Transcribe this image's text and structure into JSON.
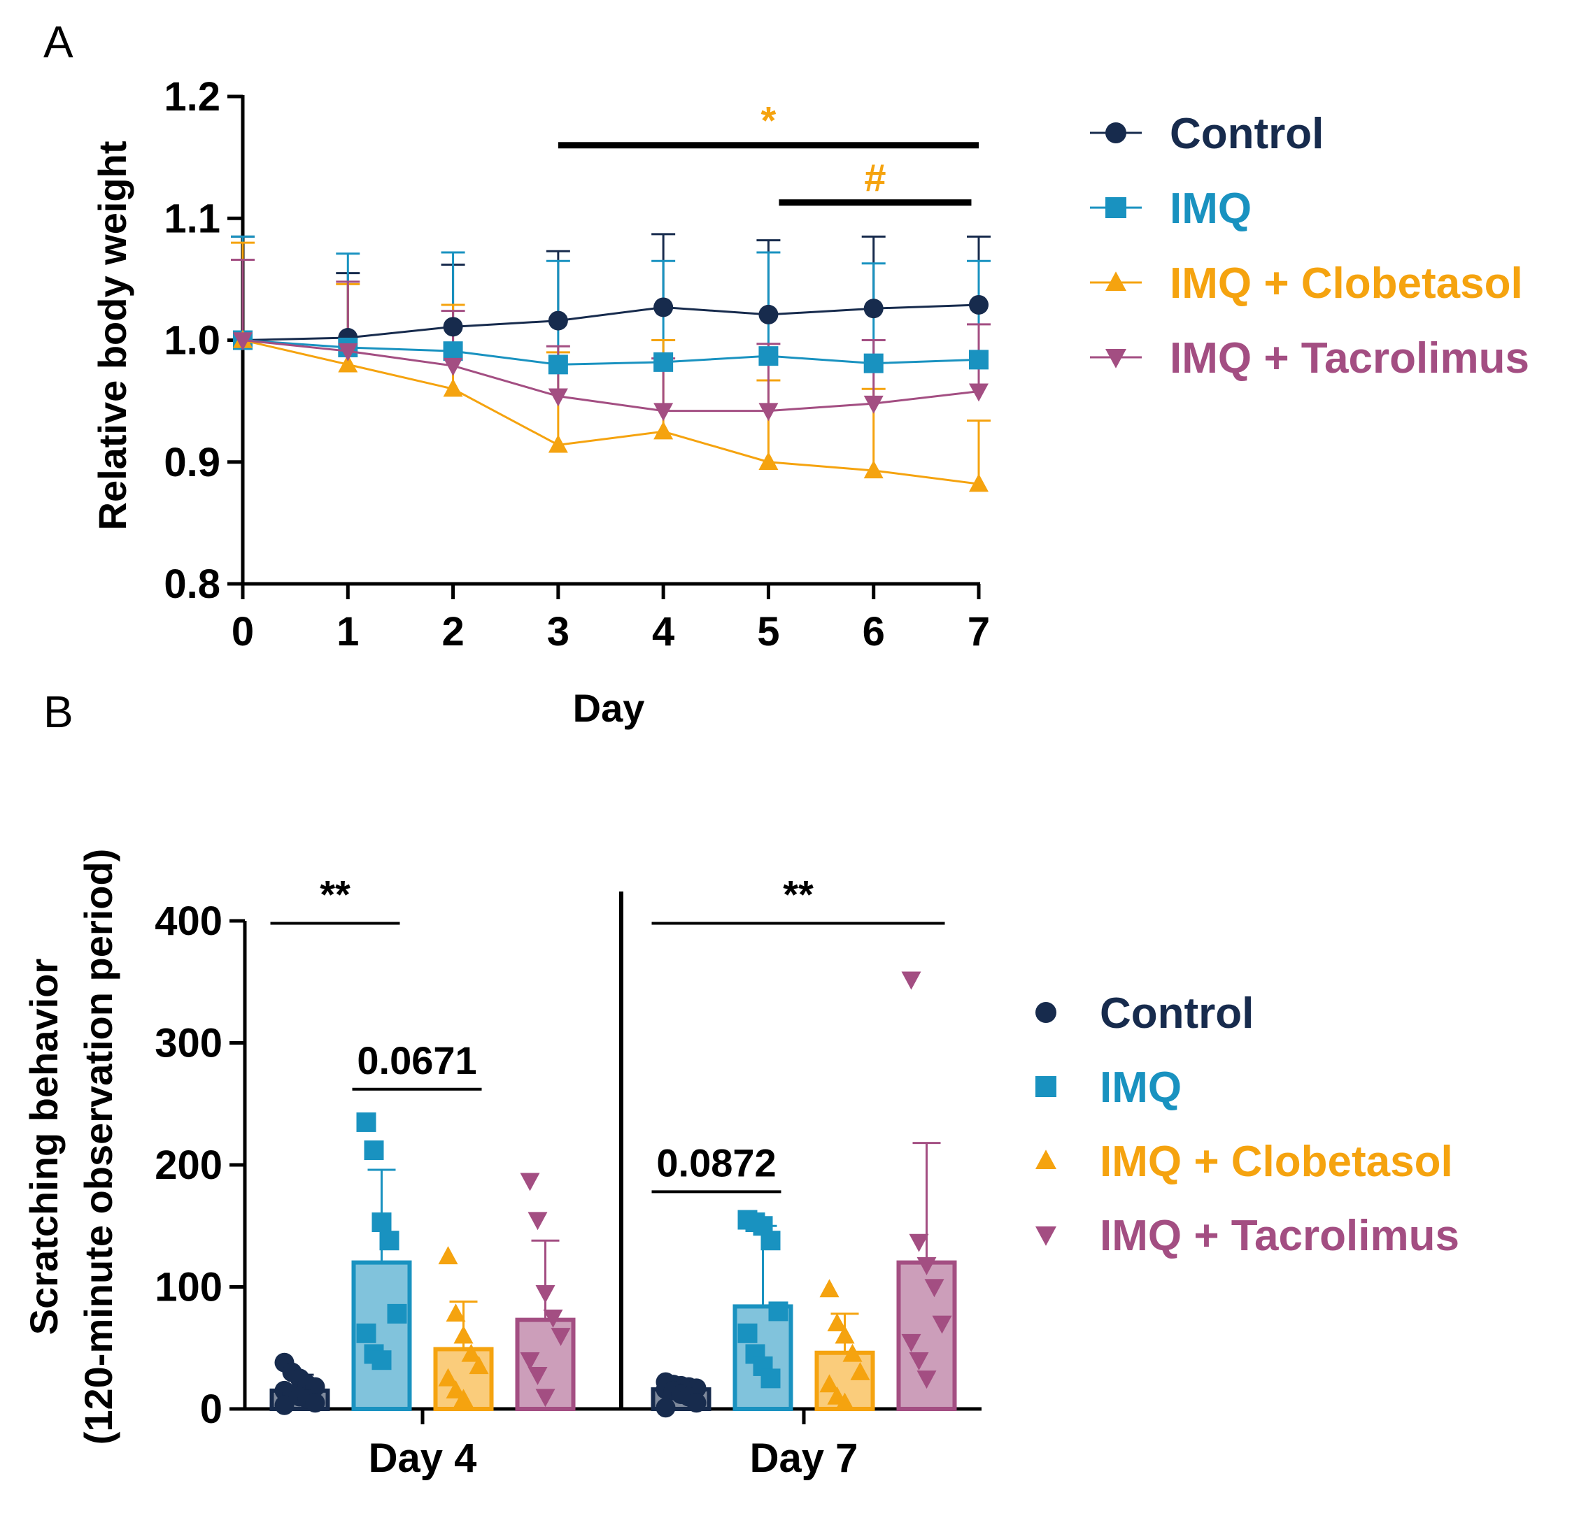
{
  "colors": {
    "Control": "#172b4d",
    "IMQ": "#1992c0",
    "IMQ + Clobetasol": "#f5a30f",
    "IMQ + Tacrolimus": "#a34e82",
    "axis": "#000000"
  },
  "chart_data": [
    {
      "panel": "A",
      "type": "line",
      "title": "",
      "xlabel": "Day",
      "ylabel": "Relative body weight",
      "x": [
        0,
        1,
        2,
        3,
        4,
        5,
        6,
        7
      ],
      "xticks": [
        "0",
        "1",
        "2",
        "3",
        "4",
        "5",
        "6",
        "7"
      ],
      "yticks": [
        "0.8",
        "0.9",
        "1.0",
        "1.1",
        "1.2"
      ],
      "ytick_values": [
        0.8,
        0.9,
        1.0,
        1.1,
        1.2
      ],
      "xlim": [
        0,
        7
      ],
      "ylim": [
        0.8,
        1.2
      ],
      "legend_position": "right",
      "series": [
        {
          "name": "Control",
          "marker": "circle",
          "values": [
            1.0,
            1.002,
            1.011,
            1.016,
            1.027,
            1.021,
            1.026,
            1.029
          ],
          "error_up": [
            1.085,
            1.055,
            1.062,
            1.073,
            1.087,
            1.082,
            1.085,
            1.085
          ]
        },
        {
          "name": "IMQ",
          "marker": "square",
          "values": [
            1.0,
            0.994,
            0.991,
            0.98,
            0.982,
            0.987,
            0.981,
            0.984
          ],
          "error_up": [
            1.085,
            1.071,
            1.072,
            1.065,
            1.065,
            1.072,
            1.063,
            1.065
          ]
        },
        {
          "name": "IMQ + Clobetasol",
          "marker": "triangle-up",
          "values": [
            1.0,
            0.98,
            0.96,
            0.914,
            0.925,
            0.9,
            0.893,
            0.882
          ],
          "error_up": [
            1.08,
            1.046,
            1.029,
            0.99,
            1.0,
            0.967,
            0.96,
            0.934
          ]
        },
        {
          "name": "IMQ + Tacrolimus",
          "marker": "triangle-down",
          "values": [
            1.0,
            0.991,
            0.979,
            0.954,
            0.942,
            0.942,
            0.948,
            0.958
          ],
          "error_up": [
            1.066,
            1.048,
            1.024,
            0.995,
            0.985,
            0.997,
            1.0,
            1.013
          ]
        }
      ],
      "annotations": [
        {
          "label": "*",
          "color_key": "IMQ + Clobetasol",
          "x_from": 3,
          "x_to": 7,
          "y_level": 1.16
        },
        {
          "label": "#",
          "color_key": "IMQ + Clobetasol",
          "x_from": 5.1,
          "x_to": 6.93,
          "y_level": 1.113
        }
      ]
    },
    {
      "panel": "B",
      "type": "bar",
      "title": "",
      "xlabel": "",
      "ylabel": "Scratching behavior",
      "ylabel2": "(120-minute observation period)",
      "categories": [
        "Day 4",
        "Day 7"
      ],
      "yticks": [
        "0",
        "100",
        "200",
        "300",
        "400"
      ],
      "ytick_values": [
        0,
        100,
        200,
        300,
        400
      ],
      "ylim": [
        0,
        400
      ],
      "legend_position": "right",
      "series": [
        {
          "name": "Control",
          "marker": "circle",
          "values": [
            15,
            16
          ],
          "error_up": [
            28,
            22
          ],
          "points": [
            [
              38,
              30,
              25,
              20,
              18,
              15,
              12,
              10,
              8,
              5,
              3
            ],
            [
              22,
              20,
              19,
              18,
              17,
              16,
              15,
              12,
              10,
              5,
              1
            ]
          ]
        },
        {
          "name": "IMQ",
          "marker": "square",
          "values": [
            120,
            84
          ],
          "error_up": [
            196,
            150
          ],
          "points": [
            [
              235,
              212,
              153,
              138,
              78,
              62,
              45,
              40
            ],
            [
              155,
              153,
              150,
              138,
              80,
              62,
              45,
              35,
              25
            ]
          ]
        },
        {
          "name": "IMQ + Clobetasol",
          "marker": "triangle-up",
          "values": [
            49,
            46
          ],
          "error_up": [
            88,
            78
          ],
          "points": [
            [
              125,
              78,
              60,
              45,
              35,
              25,
              15,
              8
            ],
            [
              98,
              70,
              60,
              45,
              30,
              20,
              10,
              5
            ]
          ]
        },
        {
          "name": "IMQ + Tacrolimus",
          "marker": "triangle-down",
          "values": [
            73,
            120
          ],
          "error_up": [
            138,
            218
          ],
          "points": [
            [
              187,
              155,
              95,
              75,
              60,
              40,
              28,
              10
            ],
            [
              352,
              137,
              118,
              100,
              70,
              55,
              40,
              25
            ]
          ]
        }
      ],
      "annotations": [
        {
          "label": "**",
          "category": 0,
          "from_series": 0,
          "to_series": 1,
          "y_level": 398
        },
        {
          "label": "0.0671",
          "category": 0,
          "from_series": 1,
          "to_series": 2,
          "y_level": 262
        },
        {
          "label": "0.0872",
          "category": 1,
          "from_series": 0,
          "to_series": 1,
          "y_level": 178
        },
        {
          "label": "**",
          "category": 1,
          "from_series": 0,
          "to_series": 3,
          "y_level": 398
        }
      ]
    }
  ]
}
